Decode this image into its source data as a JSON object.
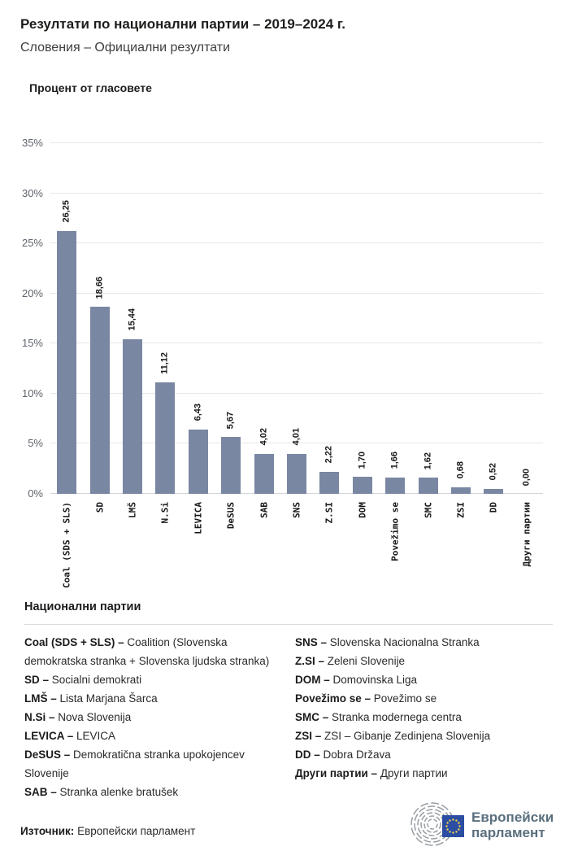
{
  "header": {
    "title": "Резултати по национални партии – 2019–2024 г.",
    "subtitle": "Словения – Официални резултати"
  },
  "chart_data": {
    "type": "bar",
    "title": "Процент от гласовете",
    "categories": [
      "Coal (SDS + SLS)",
      "SD",
      "LMŠ",
      "N.Si",
      "LEVICA",
      "DeSUS",
      "SAB",
      "SNS",
      "Z.SI",
      "DOM",
      "Povežimo se",
      "SMC",
      "ZSI",
      "DD",
      "Други партии"
    ],
    "values": [
      26.25,
      18.66,
      15.44,
      11.12,
      6.43,
      5.67,
      4.02,
      4.01,
      2.22,
      1.7,
      1.66,
      1.62,
      0.68,
      0.52,
      0.0
    ],
    "value_labels": [
      "26,25",
      "18,66",
      "15,44",
      "11,12",
      "6,43",
      "5,67",
      "4,02",
      "4,01",
      "2,22",
      "1,70",
      "1,66",
      "1,62",
      "0,68",
      "0,52",
      "0,00"
    ],
    "xlabel": "",
    "ylabel": "Процент от гласовете",
    "ylim": [
      0,
      35
    ],
    "ytick_values": [
      0,
      5,
      10,
      15,
      20,
      25,
      30,
      35
    ],
    "ytick_suffix": "%",
    "grid": true,
    "legend_position": "none",
    "bar_color": "#7a87a3"
  },
  "legend": {
    "heading": "Национални партии",
    "separator": " – ",
    "columns": [
      [
        {
          "abbr": "Coal (SDS + SLS)",
          "name": "Coalition (Slovenska demokratska stranka + Slovenska ljudska stranka)"
        },
        {
          "abbr": "SD",
          "name": "Socialni demokrati"
        },
        {
          "abbr": "LMŠ",
          "name": "Lista Marjana Šarca"
        },
        {
          "abbr": "N.Si",
          "name": "Nova Slovenija"
        },
        {
          "abbr": "LEVICA",
          "name": "LEVICA"
        },
        {
          "abbr": "DeSUS",
          "name": "Demokratična stranka upokojencev Slovenije"
        },
        {
          "abbr": "SAB",
          "name": "Stranka alenke bratušek"
        }
      ],
      [
        {
          "abbr": "SNS",
          "name": "Slovenska Nacionalna Stranka"
        },
        {
          "abbr": "Z.SI",
          "name": "Zeleni Slovenije"
        },
        {
          "abbr": "DOM",
          "name": "Domovinska Liga"
        },
        {
          "abbr": "Povežimo se",
          "name": "Povežimo se"
        },
        {
          "abbr": "SMC",
          "name": "Stranka modernega centra"
        },
        {
          "abbr": "ZSI",
          "name": "ZSI – Gibanje Zedinjena Slovenija"
        },
        {
          "abbr": "DD",
          "name": "Dobra Država"
        },
        {
          "abbr": "Други партии",
          "name": "Други партии"
        }
      ]
    ]
  },
  "footer": {
    "source_label": "Източник:",
    "source_value": "Европейски парламент",
    "logo_text_line1": "Европейски",
    "logo_text_line2": "парламент"
  },
  "colors": {
    "bar": "#7a87a3",
    "grid": "#e6e7ea",
    "axis": "#d2d5da",
    "tick_text": "#5f636b",
    "eu_flag_blue": "#2b4ea2",
    "eu_star_yellow": "#f8d44c",
    "hemicycle_gray": "#999ea4",
    "logo_text": "#5a6f7e"
  }
}
